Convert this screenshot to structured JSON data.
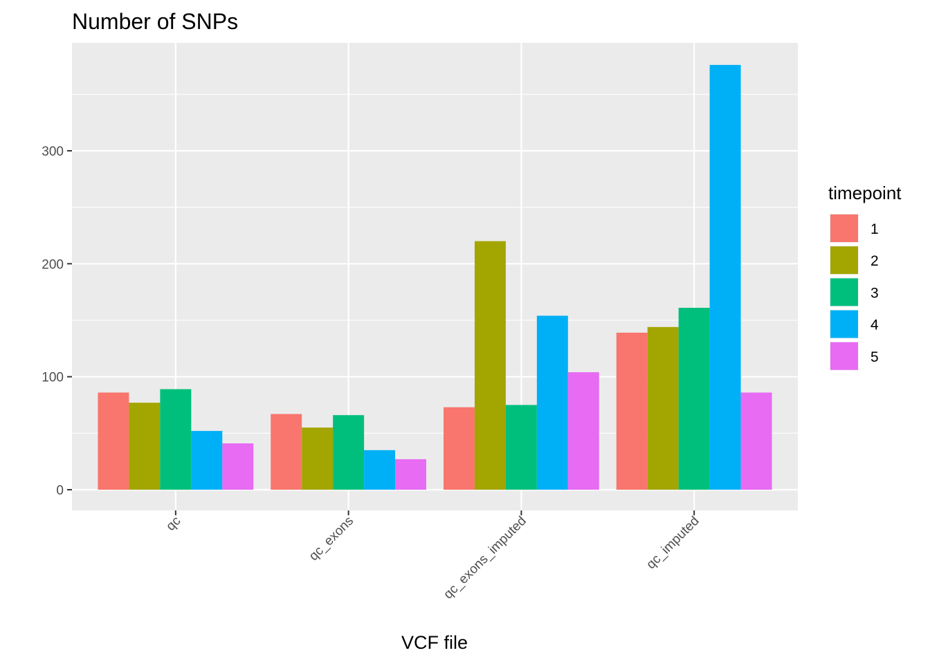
{
  "chart_data": {
    "type": "bar",
    "title": "Number of SNPs",
    "xlabel": "VCF file",
    "ylabel": "",
    "categories": [
      "qc",
      "qc_exons",
      "qc_exons_imputed",
      "qc_imputed"
    ],
    "series": [
      {
        "name": "1",
        "color": "#F8766D",
        "values": [
          86,
          67,
          73,
          139
        ]
      },
      {
        "name": "2",
        "color": "#A3A500",
        "values": [
          77,
          55,
          220,
          144
        ]
      },
      {
        "name": "3",
        "color": "#00BF7D",
        "values": [
          89,
          66,
          75,
          161
        ]
      },
      {
        "name": "4",
        "color": "#00B0F6",
        "values": [
          52,
          35,
          154,
          376
        ]
      },
      {
        "name": "5",
        "color": "#E76BF3",
        "values": [
          41,
          27,
          104,
          86
        ]
      }
    ],
    "yticks": [
      0,
      100,
      200,
      300
    ],
    "ylim": [
      -19,
      395
    ],
    "grid": true,
    "legend": {
      "title": "timepoint",
      "position": "right"
    }
  }
}
